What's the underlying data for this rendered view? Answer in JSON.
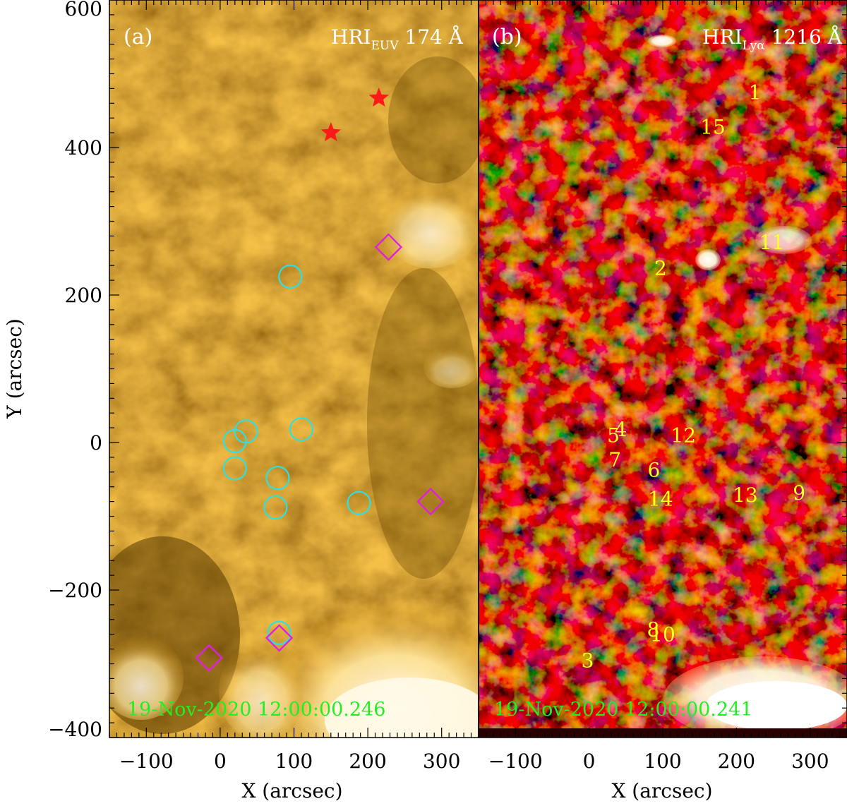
{
  "panels": [
    {
      "label": "(a)",
      "instrument": "HRI",
      "instrument_sub": "EUV",
      "wavelength": "174 Å",
      "timestamp": "19-Nov-2020 12:00:00.246",
      "circles": [
        {
          "x": 95,
          "y": 225
        },
        {
          "x": 35,
          "y": 15
        },
        {
          "x": 20,
          "y": 2
        },
        {
          "x": 110,
          "y": 18
        },
        {
          "x": 20,
          "y": -35
        },
        {
          "x": 78,
          "y": -48
        },
        {
          "x": 75,
          "y": -88
        },
        {
          "x": 188,
          "y": -82
        },
        {
          "x": 80,
          "y": -258
        }
      ],
      "diamonds": [
        {
          "x": 228,
          "y": 265
        },
        {
          "x": 285,
          "y": -80
        },
        {
          "x": 80,
          "y": -265
        },
        {
          "x": -15,
          "y": -292
        }
      ],
      "stars": [
        {
          "x": 215,
          "y": 467
        },
        {
          "x": 150,
          "y": 420
        }
      ]
    },
    {
      "label": "(b)",
      "instrument": "HRI",
      "instrument_sub": "Lyα",
      "wavelength": "1216 Å",
      "timestamp": "19-Nov-2020 12:00:00.241",
      "numbers": [
        {
          "text": "1",
          "x": 225,
          "y": 475
        },
        {
          "text": "15",
          "x": 168,
          "y": 428
        },
        {
          "text": "11",
          "x": 248,
          "y": 272
        },
        {
          "text": "2",
          "x": 97,
          "y": 237
        },
        {
          "text": "4",
          "x": 43,
          "y": 18
        },
        {
          "text": "5",
          "x": 33,
          "y": 10
        },
        {
          "text": "12",
          "x": 128,
          "y": 10
        },
        {
          "text": "7",
          "x": 35,
          "y": -23
        },
        {
          "text": "6",
          "x": 88,
          "y": -37
        },
        {
          "text": "14",
          "x": 97,
          "y": -76
        },
        {
          "text": "13",
          "x": 212,
          "y": -71
        },
        {
          "text": "9",
          "x": 285,
          "y": -68
        },
        {
          "text": "8",
          "x": 87,
          "y": -253
        },
        {
          "text": "10",
          "x": 100,
          "y": -260
        },
        {
          "text": "3",
          "x": -2,
          "y": -295
        }
      ]
    }
  ],
  "x_axis": {
    "label": "X (arcsec)",
    "ticks": [
      "-100",
      "0",
      "100",
      "200",
      "300"
    ],
    "range": [
      -150,
      350
    ]
  },
  "y_axis": {
    "label": "Y (arcsec)",
    "ticks": [
      "-400",
      "-200",
      "0",
      "200",
      "400",
      "600"
    ],
    "range": [
      -400,
      600
    ]
  },
  "colors": {
    "circle": "#2fe0e0",
    "diamond": "#e020e0",
    "star": "#ff1a1a",
    "numbers": "#ffff20",
    "timestamp": "#22ee22",
    "label": "#ffffff"
  }
}
